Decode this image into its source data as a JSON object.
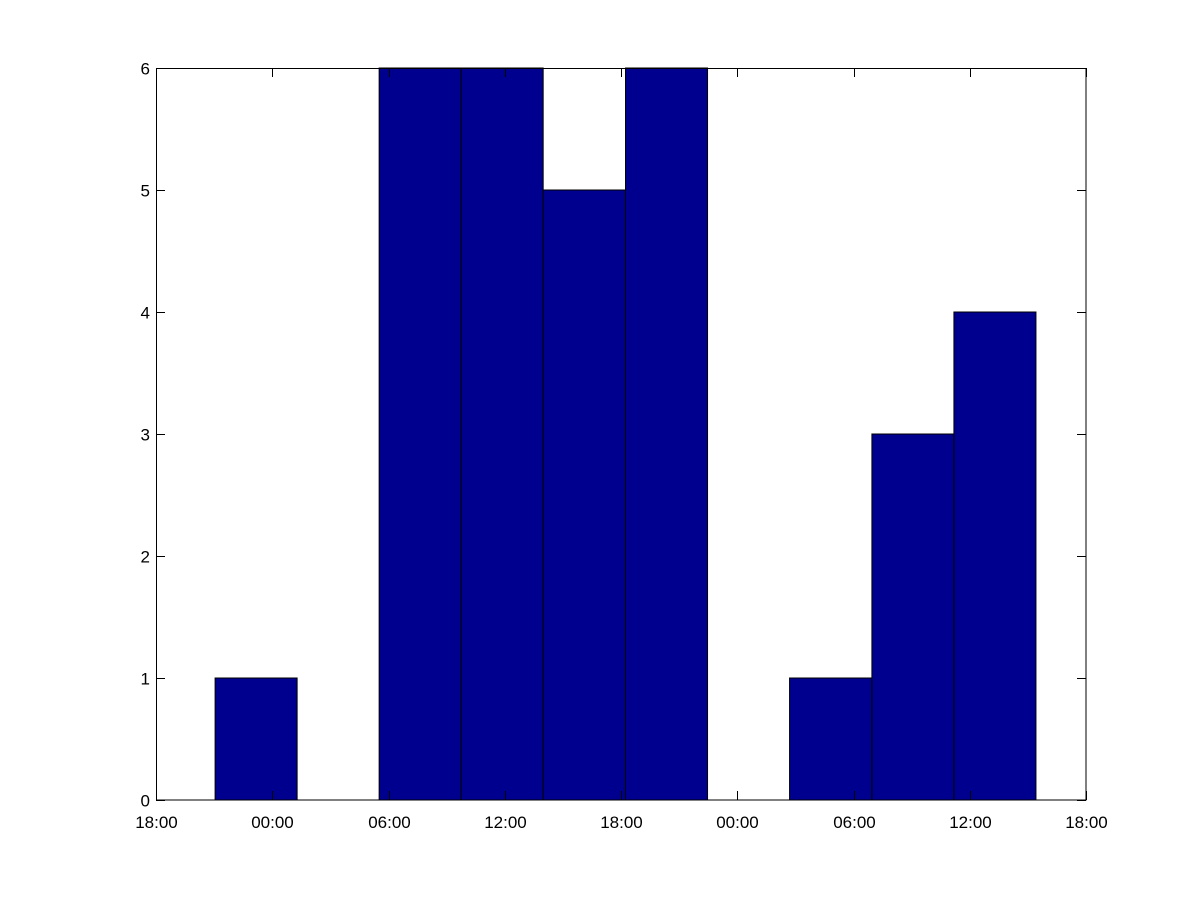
{
  "chart_data": {
    "type": "bar",
    "subtype": "histogram",
    "title": "",
    "xlabel": "",
    "ylabel": "",
    "x_ticks": [
      "18:00",
      "00:00",
      "06:00",
      "12:00",
      "18:00",
      "00:00",
      "06:00",
      "12:00",
      "18:00"
    ],
    "y_ticks": [
      0,
      1,
      2,
      3,
      4,
      5,
      6
    ],
    "ylim": [
      0,
      6
    ],
    "bin_edges": [
      "21:03",
      "01:17",
      "05:31",
      "09:45",
      "13:59",
      "18:14",
      "22:28",
      "02:42",
      "06:57",
      "11:11",
      "15:25"
    ],
    "values": [
      1,
      0,
      6,
      6,
      5,
      6,
      0,
      1,
      3,
      4
    ],
    "bar_color": "#00008F",
    "edge_color": "#000000",
    "grid": false
  }
}
